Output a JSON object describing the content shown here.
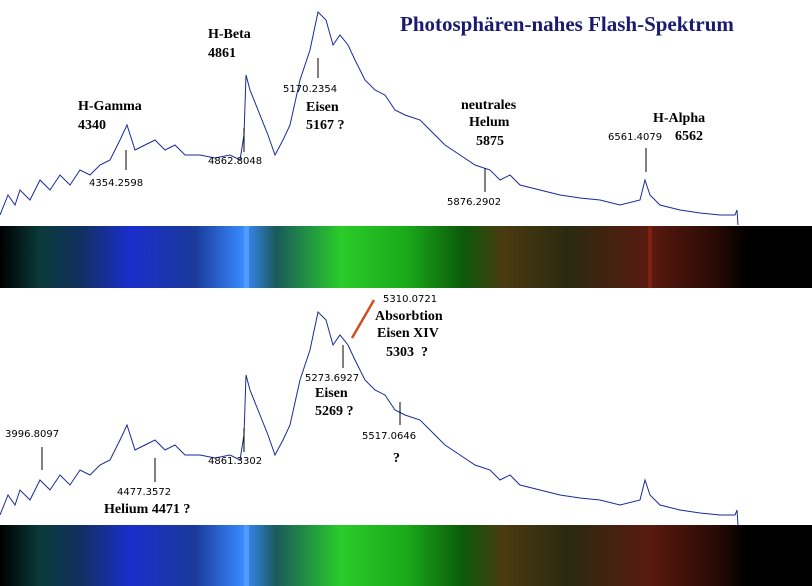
{
  "title": "Photosphären-nahes Flash-Spektrum",
  "top_panel": {
    "labels": [
      "H-Gamma",
      "4340",
      "4354.2598",
      "H-Beta",
      "4861",
      "4862.8048",
      "5170.2354",
      "Eisen",
      "5167 ?",
      "neutrales",
      "Helum",
      "5875",
      "5876.2902",
      "6561.4079",
      "H-Alpha",
      "6562"
    ]
  },
  "bottom_panel": {
    "labels": [
      "5310.0721",
      "Absorbtion",
      "Eisen XIV",
      "5303  ?",
      "5273.6927",
      "Eisen",
      "5269 ?",
      "5517.0646",
      "?",
      "3996.8097",
      "4861.3302",
      "4477.3572",
      "Helium 4471 ?"
    ]
  }
}
